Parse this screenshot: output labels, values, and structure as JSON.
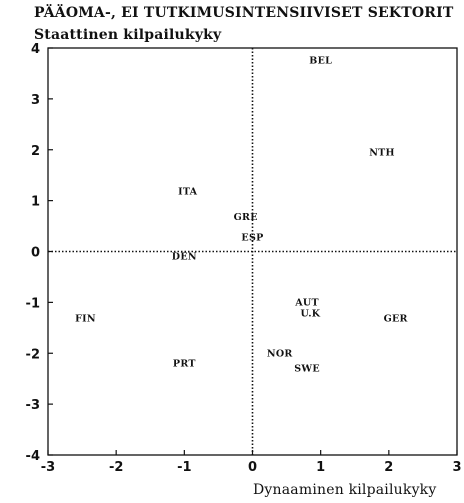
{
  "chart_data": {
    "type": "scatter",
    "title": "PÄÄOMA-, EI TUTKIMUSINTENSIIVISET SEKTORIT",
    "ylabel": "Staattinen kilpailukyky",
    "xlabel": "Dynaaminen kilpailukyky",
    "xlim": [
      -3,
      3
    ],
    "ylim": [
      -4,
      4
    ],
    "xticks": [
      -3,
      -2,
      -1,
      0,
      1,
      2,
      3
    ],
    "yticks": [
      4,
      3,
      2,
      1,
      0,
      -1,
      -2,
      -3,
      -4
    ],
    "grid": false,
    "reference_lines": "dotted lines at x = 0 and y = 0",
    "points": [
      {
        "label": "BEL",
        "x": 1.0,
        "y": 3.75
      },
      {
        "label": "NTH",
        "x": 1.9,
        "y": 1.95
      },
      {
        "label": "ITA",
        "x": -0.95,
        "y": 1.18
      },
      {
        "label": "GRE",
        "x": -0.1,
        "y": 0.68
      },
      {
        "label": "ESP",
        "x": 0.0,
        "y": 0.28
      },
      {
        "label": "DEN",
        "x": -1.0,
        "y": -0.1
      },
      {
        "label": "AUT",
        "x": 0.8,
        "y": -1.0
      },
      {
        "label": "U.K",
        "x": 0.85,
        "y": -1.22
      },
      {
        "label": "GER",
        "x": 2.1,
        "y": -1.32
      },
      {
        "label": "FIN",
        "x": -2.45,
        "y": -1.32
      },
      {
        "label": "NOR",
        "x": 0.4,
        "y": -2.0
      },
      {
        "label": "PRT",
        "x": -1.0,
        "y": -2.2
      },
      {
        "label": "SWE",
        "x": 0.8,
        "y": -2.3
      }
    ]
  }
}
